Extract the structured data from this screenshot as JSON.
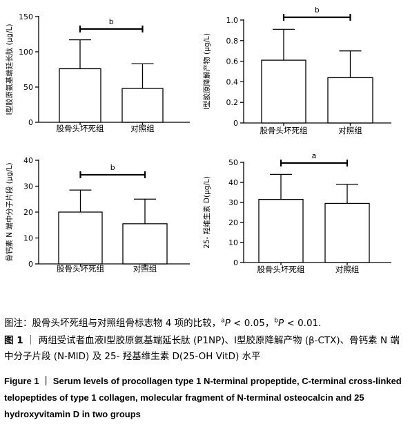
{
  "chart_data": [
    {
      "type": "bar",
      "categories": [
        "股骨头坏死组",
        "对照组"
      ],
      "values": [
        76,
        48
      ],
      "errors": [
        41,
        35
      ],
      "ylabel": "Ⅰ型胶原氨基端延长肽 (μg/L)",
      "ylim": [
        0,
        150
      ],
      "yticks": [
        "0",
        "50",
        "100",
        "150"
      ],
      "significance": "b",
      "grid": false
    },
    {
      "type": "bar",
      "categories": [
        "股骨头坏死组",
        "对照组"
      ],
      "values": [
        0.61,
        0.44
      ],
      "errors": [
        0.3,
        0.26
      ],
      "ylabel": "Ⅰ型胶原降解产物 (μg/L)",
      "ylim": [
        0,
        1.0
      ],
      "yticks": [
        "0",
        "0.2",
        "0.4",
        "0.6",
        "0.8",
        "1.0"
      ],
      "significance": "b",
      "grid": false
    },
    {
      "type": "bar",
      "categories": [
        "股骨头坏死组",
        "对照组"
      ],
      "values": [
        20,
        15.5
      ],
      "errors": [
        8.5,
        9.5
      ],
      "ylabel": "骨钙素 N 端中分子片段 (μg/L)",
      "ylim": [
        0,
        40
      ],
      "yticks": [
        "0",
        "10",
        "20",
        "30",
        "40"
      ],
      "significance": "b",
      "grid": false
    },
    {
      "type": "bar",
      "categories": [
        "股骨头坏死组",
        "对照组"
      ],
      "values": [
        31.5,
        29.5
      ],
      "errors": [
        12.5,
        9.5
      ],
      "ylabel": "25- 羟维生素 D(μg/L)",
      "ylim": [
        0,
        50
      ],
      "yticks": [
        "0",
        "10",
        "20",
        "30",
        "40",
        "50"
      ],
      "significance": "a",
      "grid": false
    }
  ],
  "caption": {
    "note_prefix": "图注：股骨头坏死组与对照组骨标志物 4 项的比较，",
    "sup_a": "a",
    "p_a": " < 0.05，",
    "sup_b": "b",
    "p_b": " < 0.01.",
    "p_symbol": "P",
    "figure_label": "图 1",
    "cn_title": "两组受试者血液Ⅰ型胶原氨基端延长肽 (P1NP)、Ⅰ型胶原降解产物 (β-CTX)、骨钙素 N 端中分子片段 (N-MID) 及 25- 羟基维生素 D(25-OH VitD) 水平",
    "en_title": "Figure 1 ｜ Serum levels of procollagen type 1 N-terminal propeptide, C-terminal cross-linked telopeptides of type 1 collagen, molecular fragment of N-terminal osteocalcin and 25 hydroxyvitamin D in two groups"
  }
}
